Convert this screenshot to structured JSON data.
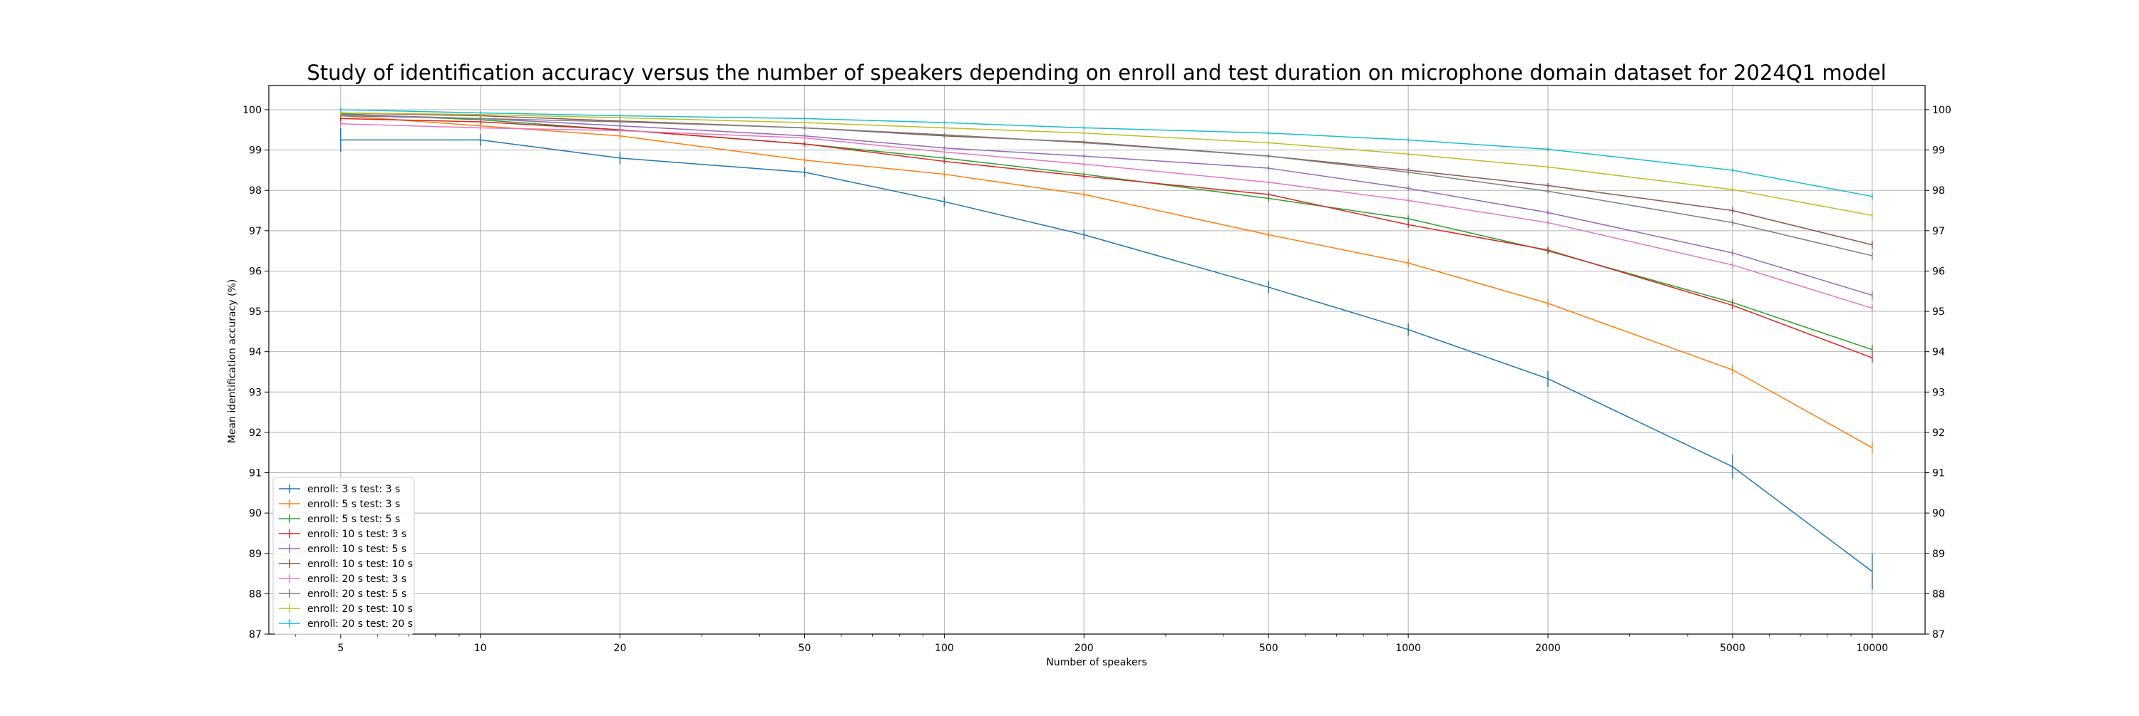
{
  "chart_data": {
    "type": "line",
    "title": "Study of identification accuracy versus the number of speakers depending on enroll and test duration on microphone domain dataset for 2024Q1 model",
    "xlabel": "Number of speakers",
    "ylabel": "Mean identification accuracy (%)",
    "x_scale": "log",
    "xlim": [
      3.5,
      13000
    ],
    "ylim": [
      87,
      100.6
    ],
    "grid": true,
    "legend_position": "lower-left",
    "x": [
      5,
      10,
      20,
      50,
      100,
      200,
      500,
      1000,
      2000,
      5000,
      10000
    ],
    "x_tick_labels": [
      "5",
      "10",
      "20",
      "50",
      "100",
      "200",
      "500",
      "1000",
      "2000",
      "5000",
      "10000"
    ],
    "y_ticks": [
      87,
      88,
      89,
      90,
      91,
      92,
      93,
      94,
      95,
      96,
      97,
      98,
      99,
      100
    ],
    "series": [
      {
        "name": "enroll: 3 s test: 3 s",
        "color": "#1f77b4",
        "values": [
          99.25,
          99.25,
          98.8,
          98.45,
          97.72,
          96.9,
          95.6,
          94.55,
          93.33,
          91.15,
          88.55
        ],
        "errors": [
          0.3,
          0.15,
          0.15,
          0.12,
          0.12,
          0.12,
          0.15,
          0.15,
          0.2,
          0.3,
          0.45
        ]
      },
      {
        "name": "enroll: 5 s test: 3 s",
        "color": "#ff7f0e",
        "values": [
          99.85,
          99.6,
          99.35,
          98.75,
          98.4,
          97.9,
          96.9,
          96.2,
          95.2,
          93.55,
          91.62
        ],
        "errors": [
          0.1,
          0.08,
          0.08,
          0.08,
          0.08,
          0.08,
          0.1,
          0.1,
          0.1,
          0.12,
          0.15
        ]
      },
      {
        "name": "enroll: 5 s test: 5 s",
        "color": "#2ca02c",
        "values": [
          99.9,
          99.75,
          99.5,
          99.15,
          98.8,
          98.4,
          97.8,
          97.3,
          96.5,
          95.22,
          94.05
        ],
        "errors": [
          0.08,
          0.06,
          0.06,
          0.06,
          0.06,
          0.06,
          0.08,
          0.08,
          0.08,
          0.1,
          0.12
        ]
      },
      {
        "name": "enroll: 10 s test: 3 s",
        "color": "#d62728",
        "values": [
          99.78,
          99.7,
          99.5,
          99.15,
          98.72,
          98.35,
          97.9,
          97.15,
          96.52,
          95.15,
          93.85
        ],
        "errors": [
          0.08,
          0.06,
          0.06,
          0.06,
          0.06,
          0.06,
          0.08,
          0.08,
          0.08,
          0.1,
          0.12
        ]
      },
      {
        "name": "enroll: 10 s test: 5 s",
        "color": "#9467bd",
        "values": [
          99.88,
          99.78,
          99.6,
          99.35,
          99.05,
          98.85,
          98.55,
          98.05,
          97.45,
          96.45,
          95.4
        ],
        "errors": [
          0.06,
          0.05,
          0.05,
          0.05,
          0.05,
          0.05,
          0.06,
          0.06,
          0.06,
          0.08,
          0.1
        ]
      },
      {
        "name": "enroll: 10 s test: 10 s",
        "color": "#8c564b",
        "values": [
          99.92,
          99.85,
          99.72,
          99.55,
          99.35,
          99.2,
          98.85,
          98.5,
          98.12,
          97.5,
          96.65
        ],
        "errors": [
          0.05,
          0.05,
          0.05,
          0.05,
          0.05,
          0.05,
          0.05,
          0.06,
          0.06,
          0.08,
          0.1
        ]
      },
      {
        "name": "enroll: 20 s test: 3 s",
        "color": "#e377c2",
        "values": [
          99.65,
          99.55,
          99.48,
          99.3,
          98.95,
          98.65,
          98.2,
          97.75,
          97.2,
          96.15,
          95.08
        ],
        "errors": [
          0.06,
          0.05,
          0.05,
          0.05,
          0.05,
          0.05,
          0.06,
          0.06,
          0.06,
          0.08,
          0.1
        ]
      },
      {
        "name": "enroll: 20 s test: 5 s",
        "color": "#7f7f7f",
        "values": [
          99.85,
          99.78,
          99.7,
          99.55,
          99.38,
          99.18,
          98.85,
          98.45,
          97.98,
          97.2,
          96.38
        ],
        "errors": [
          0.05,
          0.05,
          0.05,
          0.05,
          0.05,
          0.05,
          0.05,
          0.06,
          0.06,
          0.08,
          0.1
        ]
      },
      {
        "name": "enroll: 20 s test: 10 s",
        "color": "#bcbd22",
        "values": [
          99.92,
          99.88,
          99.8,
          99.68,
          99.55,
          99.42,
          99.18,
          98.9,
          98.58,
          98.02,
          97.38
        ],
        "errors": [
          0.05,
          0.04,
          0.04,
          0.04,
          0.04,
          0.04,
          0.05,
          0.05,
          0.05,
          0.06,
          0.08
        ]
      },
      {
        "name": "enroll: 20 s test: 20 s",
        "color": "#17becf",
        "values": [
          100.0,
          99.92,
          99.85,
          99.78,
          99.68,
          99.55,
          99.42,
          99.25,
          99.02,
          98.5,
          97.85
        ],
        "errors": [
          0.04,
          0.04,
          0.04,
          0.04,
          0.04,
          0.04,
          0.04,
          0.05,
          0.05,
          0.06,
          0.08
        ]
      }
    ]
  }
}
